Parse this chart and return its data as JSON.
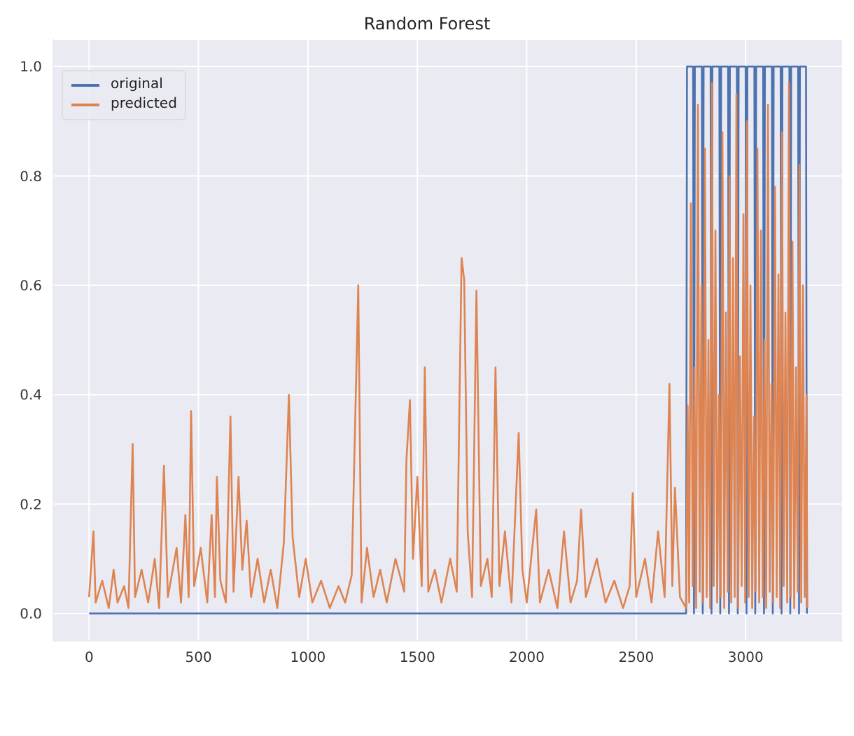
{
  "chart_data": {
    "type": "line",
    "title": "Random Forest",
    "legend": "top left",
    "grid": true,
    "xlim": [
      -164,
      3444
    ],
    "xticks": [
      0,
      500,
      1000,
      1500,
      2000,
      2500,
      3000
    ],
    "ylim": [
      -0.05,
      1.05
    ],
    "yticks": [
      {
        "value": 0,
        "label": "0.0"
      },
      {
        "value": 0.2,
        "label": "0.2"
      },
      {
        "value": 0.4,
        "label": "0.4"
      },
      {
        "value": 0.6,
        "label": "0.6"
      },
      {
        "value": 0.8,
        "label": "0.8"
      },
      {
        "value": 1,
        "label": "1.0"
      }
    ],
    "series": [
      {
        "name": "original",
        "color": "#4c72b0",
        "x": [
          0,
          2728,
          2732,
          2760,
          2764,
          2768,
          2800,
          2804,
          2808,
          2840,
          2844,
          2848,
          2880,
          2884,
          2888,
          2920,
          2924,
          2928,
          2960,
          2964,
          2968,
          3000,
          3004,
          3008,
          3040,
          3044,
          3048,
          3080,
          3084,
          3088,
          3120,
          3124,
          3128,
          3160,
          3164,
          3168,
          3200,
          3204,
          3208,
          3240,
          3244,
          3248,
          3276,
          3280
        ],
        "values": [
          0,
          0,
          1,
          1,
          0,
          1,
          1,
          0,
          1,
          1,
          0,
          1,
          1,
          0,
          1,
          1,
          0,
          1,
          1,
          0,
          1,
          1,
          0,
          1,
          1,
          0,
          1,
          1,
          0,
          1,
          1,
          0,
          1,
          1,
          0,
          1,
          1,
          0,
          1,
          1,
          0,
          1,
          1,
          0
        ]
      },
      {
        "name": "predicted",
        "color": "#dd8452",
        "x": [
          0,
          20,
          30,
          60,
          90,
          112,
          130,
          160,
          180,
          199,
          210,
          240,
          270,
          300,
          320,
          342,
          360,
          400,
          420,
          440,
          455,
          466,
          480,
          510,
          540,
          560,
          575,
          584,
          600,
          625,
          646,
          660,
          683,
          700,
          720,
          740,
          770,
          800,
          830,
          860,
          890,
          913,
          930,
          960,
          990,
          1020,
          1060,
          1100,
          1140,
          1170,
          1200,
          1230,
          1245,
          1270,
          1300,
          1330,
          1360,
          1400,
          1440,
          1450,
          1466,
          1480,
          1500,
          1520,
          1534,
          1550,
          1580,
          1610,
          1650,
          1680,
          1702,
          1714,
          1730,
          1750,
          1770,
          1790,
          1820,
          1840,
          1857,
          1875,
          1900,
          1930,
          1963,
          1980,
          2000,
          2020,
          2043,
          2060,
          2100,
          2140,
          2170,
          2200,
          2230,
          2248,
          2270,
          2320,
          2360,
          2400,
          2440,
          2470,
          2484,
          2500,
          2540,
          2570,
          2600,
          2630,
          2652,
          2665,
          2677,
          2700,
          2728,
          2735,
          2742,
          2750,
          2758,
          2766,
          2774,
          2782,
          2790,
          2798,
          2806,
          2814,
          2822,
          2830,
          2838,
          2846,
          2854,
          2862,
          2870,
          2878,
          2886,
          2894,
          2902,
          2910,
          2918,
          2926,
          2934,
          2942,
          2950,
          2958,
          2966,
          2974,
          2982,
          2990,
          2998,
          3006,
          3014,
          3022,
          3030,
          3038,
          3046,
          3054,
          3062,
          3070,
          3078,
          3086,
          3094,
          3102,
          3110,
          3118,
          3126,
          3134,
          3142,
          3150,
          3158,
          3166,
          3174,
          3182,
          3190,
          3198,
          3206,
          3214,
          3222,
          3230,
          3238,
          3246,
          3254,
          3262,
          3270,
          3278,
          3282
        ],
        "values": [
          0.03,
          0.15,
          0.02,
          0.06,
          0.01,
          0.08,
          0.02,
          0.05,
          0.01,
          0.31,
          0.03,
          0.08,
          0.02,
          0.1,
          0.01,
          0.27,
          0.03,
          0.12,
          0.02,
          0.18,
          0.03,
          0.37,
          0.05,
          0.12,
          0.02,
          0.18,
          0.03,
          0.25,
          0.06,
          0.02,
          0.36,
          0.04,
          0.25,
          0.08,
          0.17,
          0.03,
          0.1,
          0.02,
          0.08,
          0.01,
          0.13,
          0.4,
          0.14,
          0.03,
          0.1,
          0.02,
          0.06,
          0.01,
          0.05,
          0.02,
          0.07,
          0.6,
          0.02,
          0.12,
          0.03,
          0.08,
          0.02,
          0.1,
          0.04,
          0.28,
          0.39,
          0.1,
          0.25,
          0.05,
          0.45,
          0.04,
          0.08,
          0.02,
          0.1,
          0.04,
          0.65,
          0.61,
          0.15,
          0.03,
          0.59,
          0.05,
          0.1,
          0.03,
          0.45,
          0.05,
          0.15,
          0.02,
          0.33,
          0.08,
          0.02,
          0.1,
          0.19,
          0.02,
          0.08,
          0.01,
          0.15,
          0.02,
          0.06,
          0.19,
          0.03,
          0.1,
          0.02,
          0.06,
          0.01,
          0.05,
          0.22,
          0.03,
          0.1,
          0.02,
          0.15,
          0.03,
          0.42,
          0.05,
          0.23,
          0.03,
          0.01,
          0.38,
          0.02,
          0.75,
          0.05,
          0.45,
          0.01,
          0.93,
          0.04,
          0.6,
          0.02,
          0.85,
          0.03,
          0.5,
          0.01,
          0.97,
          0.05,
          0.7,
          0.02,
          0.4,
          0.03,
          0.88,
          0.01,
          0.55,
          0.04,
          0.8,
          0.02,
          0.65,
          0.03,
          0.95,
          0.01,
          0.47,
          0.05,
          0.73,
          0.02,
          0.9,
          0.03,
          0.6,
          0.01,
          0.36,
          0.04,
          0.85,
          0.02,
          0.7,
          0.03,
          0.5,
          0.01,
          0.93,
          0.04,
          0.42,
          0.02,
          0.78,
          0.03,
          0.62,
          0.01,
          0.88,
          0.05,
          0.55,
          0.02,
          0.97,
          0.03,
          0.68,
          0.01,
          0.45,
          0.04,
          0.82,
          0.02,
          0.6,
          0.03,
          0.4,
          0.01
        ]
      }
    ]
  }
}
